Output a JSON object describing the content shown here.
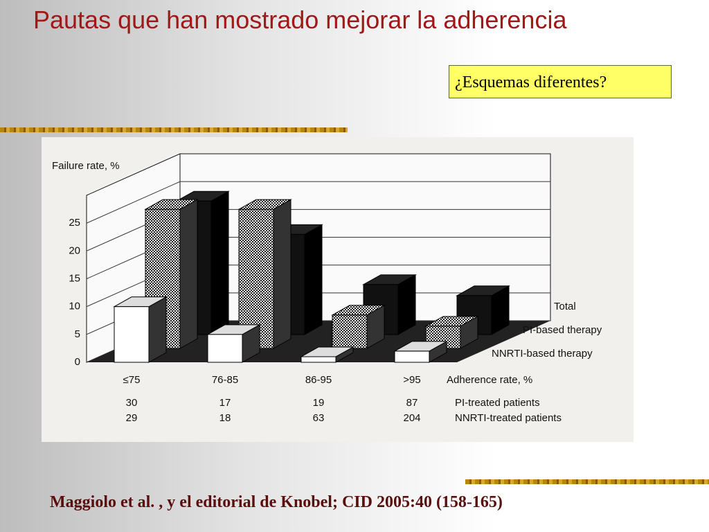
{
  "slide": {
    "title": "Pautas que han mostrado mejorar la adherencia",
    "box": "¿Esquemas diferentes?",
    "citation": "Maggiolo et al. , y  el editorial de Knobel; CID 2005:40 (158-165)"
  },
  "chart_data": {
    "type": "bar3d",
    "y_label": "Failure rate, %",
    "x_label": "Adherence rate, %",
    "categories": [
      "≤75",
      "76-85",
      "86-95",
      ">95"
    ],
    "series": [
      {
        "name": "Total",
        "color": "#111111",
        "values": [
          24,
          18,
          9,
          7
        ]
      },
      {
        "name": "PI-based therapy",
        "color": "checkered",
        "values": [
          25,
          25,
          6,
          4
        ]
      },
      {
        "name": "NNRTI-based therapy",
        "color": "#ffffff",
        "values": [
          10,
          5,
          1,
          2
        ]
      }
    ],
    "ylim": [
      0,
      30
    ],
    "yticks": [
      0,
      5,
      10,
      15,
      20,
      25
    ],
    "grid": true,
    "table": [
      {
        "name": "PI-treated patients",
        "values": [
          30,
          17,
          19,
          87
        ]
      },
      {
        "name": "NNRTI-treated patients",
        "values": [
          29,
          18,
          63,
          204
        ]
      }
    ]
  }
}
